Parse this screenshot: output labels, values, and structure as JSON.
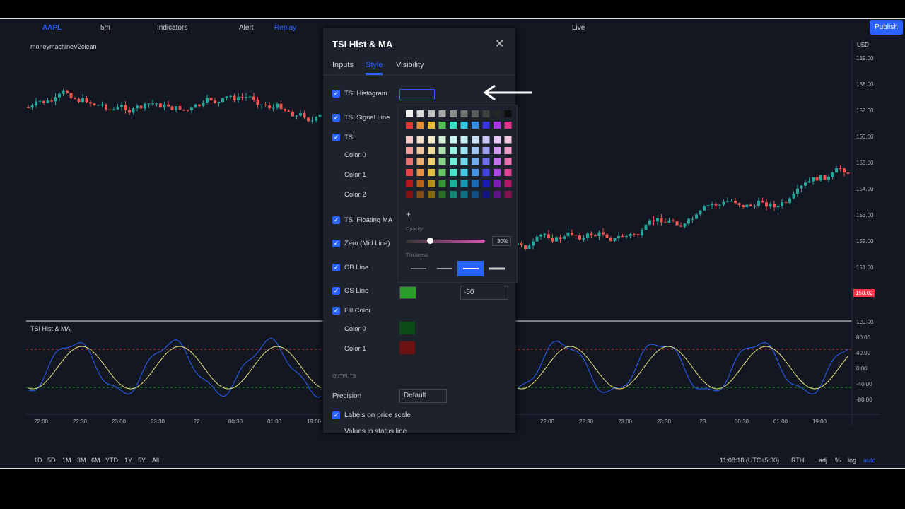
{
  "toolbar": {
    "symbol": "AAPL",
    "interval": "5m",
    "indicators": "Indicators",
    "alert": "Alert",
    "replay": "Replay",
    "live": "Live",
    "publish": "Publish"
  },
  "chart": {
    "study_label": "moneymachineV2clean",
    "currency": "USD",
    "price_ticks": [
      "159.00",
      "158.00",
      "157.00",
      "156.00",
      "155.00",
      "154.00",
      "153.00",
      "152.00",
      "151.00"
    ],
    "last_price": "150.02",
    "pane_title": "TSI Hist & MA",
    "pane_ticks": [
      "120.00",
      "80.00",
      "40.00",
      "0.00",
      "-40.00",
      "-80.00"
    ],
    "time_ticks": [
      "22:00",
      "22:30",
      "23:00",
      "23:30",
      "22",
      "00:30",
      "01:00",
      "19:00",
      "22:00",
      "22:30",
      "23:00",
      "23:30",
      "23",
      "00:30",
      "01:00",
      "19:00"
    ]
  },
  "bottom_bar": {
    "ranges": [
      "1D",
      "5D",
      "1M",
      "3M",
      "6M",
      "YTD",
      "1Y",
      "5Y",
      "All"
    ],
    "clock": "11:08:18 (UTC+5:30)",
    "rth": "RTH",
    "adj": "adj",
    "percent": "%",
    "log": "log",
    "auto": "auto"
  },
  "dialog": {
    "title": "TSI Hist & MA",
    "tabs": [
      "Inputs",
      "Style",
      "Visibility"
    ],
    "rows": [
      {
        "label": "TSI Histogram",
        "checkbox": true
      },
      {
        "label": "TSI Signal Line",
        "checkbox": true
      },
      {
        "label": "TSI",
        "checkbox": true
      },
      {
        "label": "Color 0",
        "checkbox": false
      },
      {
        "label": "Color 1",
        "checkbox": false
      },
      {
        "label": "Color 2",
        "checkbox": false
      },
      {
        "label": "TSI Floating MA",
        "checkbox": true
      },
      {
        "label": "Zero (Mid Line)",
        "checkbox": true
      },
      {
        "label": "OB Line",
        "checkbox": true
      },
      {
        "label": "OS Line",
        "checkbox": true
      },
      {
        "label": "Fill Color",
        "checkbox": true
      },
      {
        "label": "Color 0",
        "checkbox": false
      },
      {
        "label": "Color 1",
        "checkbox": false
      }
    ],
    "os_value": "-50",
    "outputs_heading": "OUTPUTS",
    "precision_label": "Precision",
    "precision_value": "Default",
    "labels_on_price_scale": "Labels on price scale",
    "values_in_status_line": "Values in status line"
  },
  "color_popup": {
    "add": "+",
    "opacity_label": "Opacity",
    "opacity_value": "30%",
    "thickness_label": "Thickness"
  }
}
